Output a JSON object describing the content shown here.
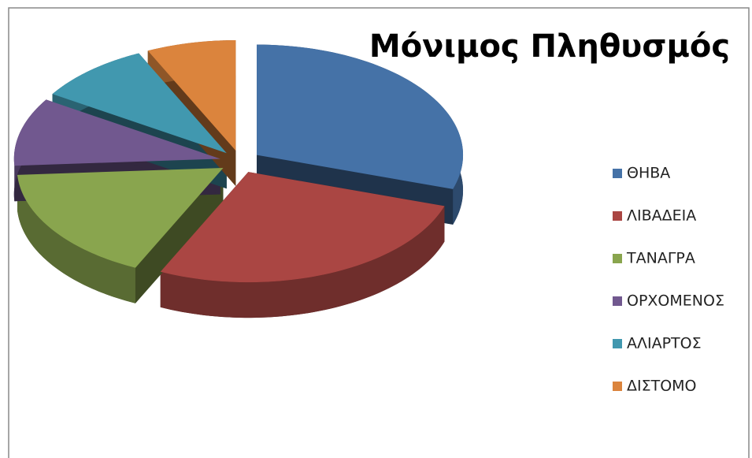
{
  "chart_data": {
    "type": "pie3d",
    "title": "Μόνιμος Πληθυσμός",
    "categories": [
      "ΘΗΒΑ",
      "ΛΙΒΑΔΕΙΑ",
      "ΤΑΝΑΓΡΑ",
      "ΟΡΧΟΜΕΝΟΣ",
      "ΑΛΙΑΡΤΟΣ",
      "ΔΙΣΤΟΜΟ"
    ],
    "values": [
      30,
      27,
      17,
      10,
      9,
      7
    ],
    "colors": [
      "#4572a7",
      "#aa4643",
      "#89a54e",
      "#71588f",
      "#4198af",
      "#db843d"
    ],
    "legend": "right",
    "exploded": true
  }
}
